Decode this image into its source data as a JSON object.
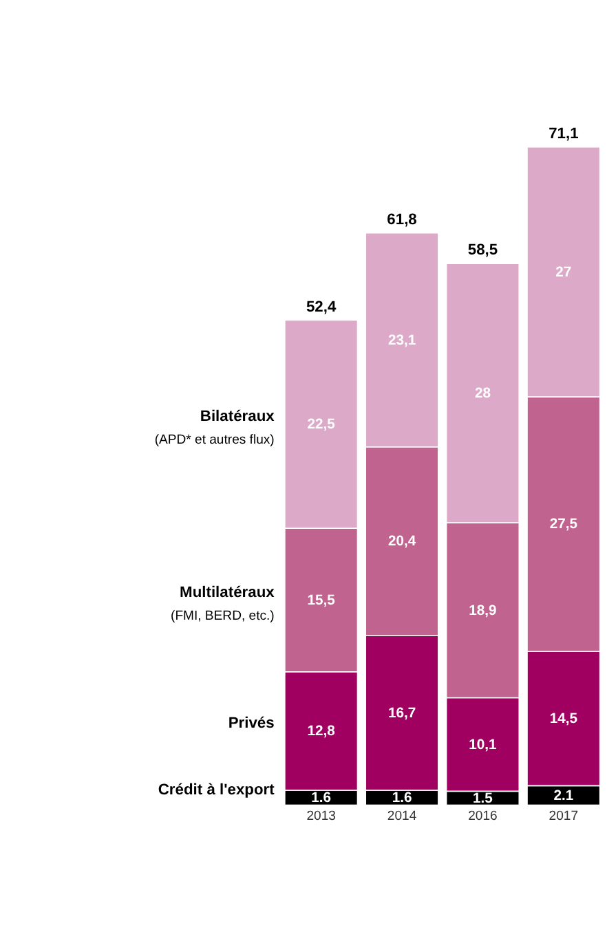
{
  "chart_data": {
    "type": "bar",
    "stacked": true,
    "categories": [
      "2013",
      "2014",
      "2016",
      "2017"
    ],
    "series": [
      {
        "name": "Crédit à l'export",
        "color": "#000000",
        "values": [
          1.6,
          1.6,
          1.5,
          2.1
        ],
        "value_labels": [
          "1.6",
          "1.6",
          "1.5",
          "2.1"
        ]
      },
      {
        "name": "Privés",
        "color": "#a0005f",
        "values": [
          12.8,
          16.7,
          10.1,
          14.5
        ],
        "value_labels": [
          "12,8",
          "16,7",
          "10,1",
          "14,5"
        ]
      },
      {
        "name": "Multilatéraux\n(FMI, BERD, etc.)",
        "color": "#c0648f",
        "values": [
          15.5,
          20.4,
          18.9,
          27.5
        ],
        "value_labels": [
          "15,5",
          "20,4",
          "18,9",
          "27,5"
        ]
      },
      {
        "name": "Bilatéraux\n(APD* et autres flux)",
        "color": "#dcaac8",
        "values": [
          22.5,
          23.1,
          28,
          27
        ],
        "value_labels": [
          "22,5",
          "23,1",
          "28",
          "27"
        ]
      }
    ],
    "totals": [
      "52,4",
      "61,8",
      "58,5",
      "71,1"
    ],
    "legend": "left",
    "grid": false,
    "tick_labels": "x"
  }
}
